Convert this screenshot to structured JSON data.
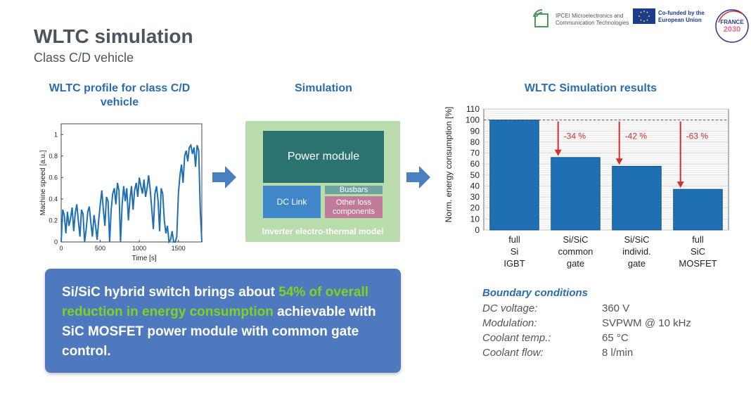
{
  "header": {
    "title": "WLTC simulation",
    "subtitle": "Class C/D vehicle",
    "logos": {
      "ipcei": "IPCEI Microelectronics and Communication Technologies",
      "eu": "Co-funded by the European Union",
      "france_top": "FRANCE",
      "france_bottom": "2030"
    }
  },
  "sections": {
    "profile_title": "WLTC profile for class C/D vehicle",
    "simulation_title": "Simulation",
    "results_title": "WLTC Simulation results"
  },
  "simulation": {
    "power_module": "Power module",
    "dc_link": "DC Link",
    "busbars": "Busbars",
    "other_loss": "Other loss components",
    "caption": "Inverter electro-thermal model",
    "colors": {
      "background": "#b8dcac",
      "power_module": "#2a7371",
      "dc_link": "#3f87c9",
      "busbars": "#6fa39f",
      "other_loss": "#c07a9a"
    }
  },
  "highlight": {
    "part1": "Si/SiC hybrid switch brings about ",
    "emph": "54% of overall reduction in energy consumption",
    "part2": " achievable with SiC MOSFET power module with common gate control."
  },
  "boundary": {
    "title": "Boundary conditions",
    "rows": [
      {
        "label": "DC voltage:",
        "value": "360 V"
      },
      {
        "label": "Modulation:",
        "value": "SVPWM @ 10 kHz"
      },
      {
        "label": "Coolant temp.:",
        "value": "65 °C"
      },
      {
        "label": "Coolant flow:",
        "value": "8 l/min"
      }
    ]
  },
  "chart_data": [
    {
      "type": "line",
      "xlabel": "Time [s]",
      "ylabel": "Machine speed [a.u.]",
      "xlim": [
        0,
        1800
      ],
      "ylim": [
        0,
        1.1
      ],
      "xticks": [
        0,
        500,
        1000,
        1500
      ],
      "yticks": [
        0,
        0.2,
        0.4,
        0.6,
        0.8,
        1
      ],
      "color": "#1f6fb5",
      "series": [
        {
          "x": [
            0,
            20,
            40,
            60,
            80,
            100,
            120,
            140,
            160,
            180,
            200,
            220,
            240,
            260,
            280,
            300,
            320,
            340,
            360,
            380,
            400,
            420,
            440,
            460,
            480,
            500,
            520,
            540,
            560,
            580,
            600,
            620,
            640,
            660,
            680,
            700,
            720,
            740,
            760,
            780,
            800,
            820,
            840,
            860,
            880,
            900,
            920,
            940,
            960,
            980,
            1000,
            1020,
            1040,
            1060,
            1080,
            1100,
            1120,
            1140,
            1160,
            1180,
            1200,
            1220,
            1240,
            1260,
            1280,
            1300,
            1320,
            1340,
            1360,
            1380,
            1400,
            1420,
            1440,
            1460,
            1480,
            1500,
            1520,
            1540,
            1560,
            1580,
            1600,
            1620,
            1640,
            1660,
            1680,
            1700,
            1720,
            1740,
            1760,
            1780,
            1800
          ],
          "y": [
            0,
            0.3,
            0.25,
            0.08,
            0.28,
            0.15,
            0.22,
            0.32,
            0.1,
            0.27,
            0.35,
            0.2,
            0.05,
            0.3,
            0.26,
            0.0,
            0.12,
            0.28,
            0.33,
            0.18,
            0.05,
            0.25,
            0.15,
            0.02,
            0.2,
            0.35,
            0.48,
            0.3,
            0.15,
            0.42,
            0.38,
            0.0,
            0.3,
            0.45,
            0.5,
            0.35,
            0.55,
            0.48,
            0.0,
            0.35,
            0.52,
            0.38,
            0.5,
            0.2,
            0.4,
            0.52,
            0.3,
            0.48,
            0.55,
            0.42,
            0.6,
            0.52,
            0.45,
            0.58,
            0.42,
            0.5,
            0.62,
            0.48,
            0.3,
            0.12,
            0.45,
            0.52,
            0.38,
            0.1,
            0.5,
            0.45,
            0.2,
            0.08,
            0.15,
            0.0,
            0.02,
            0.1,
            0.0,
            0.0,
            0.05,
            0.45,
            0.62,
            0.72,
            0.55,
            0.8,
            0.85,
            0.75,
            0.88,
            0.9,
            0.82,
            0.88,
            0.7,
            0.9,
            0.85,
            0.3,
            0.0
          ]
        }
      ]
    },
    {
      "type": "bar",
      "categories": [
        "full Si IGBT",
        "Si/SiC common gate",
        "Si/SiC individ. gate",
        "full SiC MOSFET"
      ],
      "values": [
        100,
        66,
        58,
        37
      ],
      "ylabel": "Norm. energy consumption [%]",
      "ylim": [
        0,
        110
      ],
      "yticks": [
        0,
        10,
        20,
        30,
        40,
        50,
        60,
        70,
        80,
        90,
        100,
        110
      ],
      "reference_line": 100,
      "bar_color": "#1f6fb5",
      "annotations": [
        "-34 %",
        "-42 %",
        "-63 %"
      ],
      "annotation_color": "#d0312d",
      "grid": true
    }
  ]
}
